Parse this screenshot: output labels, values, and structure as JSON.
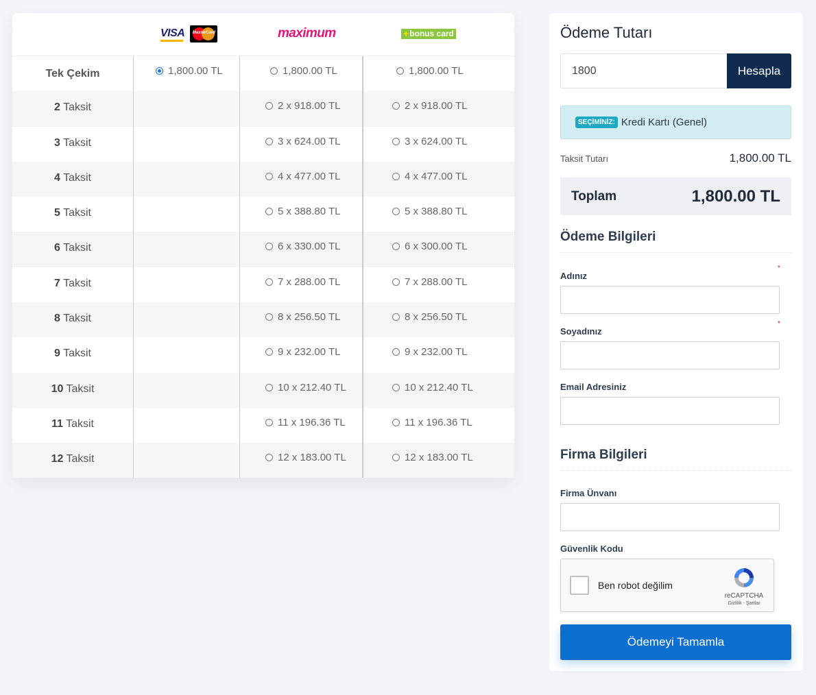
{
  "table": {
    "logos": {
      "visa": "VISA",
      "mastercard": "MasterCard",
      "maximum": "maximum",
      "bonus": "bonus card"
    },
    "rows": [
      {
        "label_num": "",
        "label_text": "Tek Çekim",
        "visa": "1,800.00 TL",
        "maximum": "1,800.00 TL",
        "bonus": "1,800.00 TL"
      },
      {
        "label_num": "2",
        "label_text": "Taksit",
        "visa": "",
        "maximum": "2 x 918.00 TL",
        "bonus": "2 x 918.00 TL"
      },
      {
        "label_num": "3",
        "label_text": "Taksit",
        "visa": "",
        "maximum": "3 x 624.00 TL",
        "bonus": "3 x 624.00 TL"
      },
      {
        "label_num": "4",
        "label_text": "Taksit",
        "visa": "",
        "maximum": "4 x 477.00 TL",
        "bonus": "4 x 477.00 TL"
      },
      {
        "label_num": "5",
        "label_text": "Taksit",
        "visa": "",
        "maximum": "5 x 388.80 TL",
        "bonus": "5 x 388.80 TL"
      },
      {
        "label_num": "6",
        "label_text": "Taksit",
        "visa": "",
        "maximum": "6 x 330.00 TL",
        "bonus": "6 x 300.00 TL"
      },
      {
        "label_num": "7",
        "label_text": "Taksit",
        "visa": "",
        "maximum": "7 x 288.00 TL",
        "bonus": "7 x 288.00 TL"
      },
      {
        "label_num": "8",
        "label_text": "Taksit",
        "visa": "",
        "maximum": "8 x 256.50 TL",
        "bonus": "8 x 256.50 TL"
      },
      {
        "label_num": "9",
        "label_text": "Taksit",
        "visa": "",
        "maximum": "9 x 232.00 TL",
        "bonus": "9 x 232.00 TL"
      },
      {
        "label_num": "10",
        "label_text": "Taksit",
        "visa": "",
        "maximum": "10 x 212.40 TL",
        "bonus": "10 x 212.40 TL"
      },
      {
        "label_num": "11",
        "label_text": "Taksit",
        "visa": "",
        "maximum": "11 x 196.36 TL",
        "bonus": "11 x 196.36 TL"
      },
      {
        "label_num": "12",
        "label_text": "Taksit",
        "visa": "",
        "maximum": "12 x 183.00 TL",
        "bonus": "12 x 183.00 TL"
      }
    ]
  },
  "payment": {
    "title": "Ödeme Tutarı",
    "amount_value": "1800",
    "calc_label": "Hesapla",
    "selection_badge": "SEÇİMİNİZ:",
    "selection_text": "Kredi Kartı (Genel)",
    "installment_label": "Taksit Tutarı",
    "installment_value": "1,800.00 TL",
    "total_label": "Toplam",
    "total_value": "1,800.00 TL"
  },
  "payment_info": {
    "title": "Ödeme Bilgileri",
    "first_name_label": "Adınız",
    "last_name_label": "Soyadınız",
    "email_label": "Email Adresiniz",
    "required_mark": "*"
  },
  "company_info": {
    "title": "Firma Bilgileri",
    "company_label": "Firma Ünvanı",
    "security_label": "Güvenlik Kodu"
  },
  "captcha": {
    "text": "Ben robot değilim",
    "brand": "reCAPTCHA",
    "links": "Gizlilik - Şartlar"
  },
  "submit_label": "Ödemeyi Tamamla",
  "colors": {
    "primary_button": "#0a6fd0",
    "calc_button": "#0f2b4d",
    "selection_bg": "#d2eef4",
    "maximum_brand": "#e0157a",
    "bonus_brand": "#8cc63f"
  }
}
